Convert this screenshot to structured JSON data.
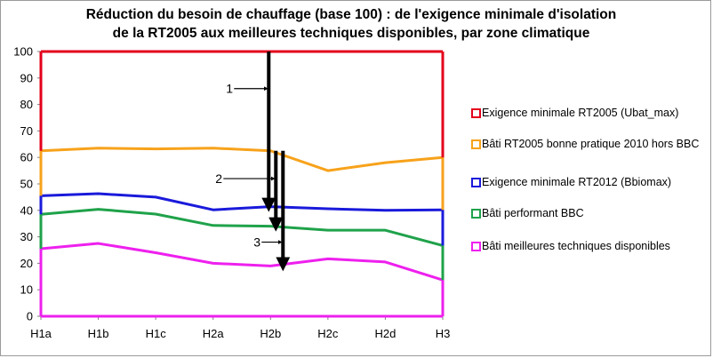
{
  "chart_data": {
    "type": "line",
    "title_lines": [
      "Réduction du besoin de chauffage (base 100) : de l'exigence minimale d'isolation",
      "de la RT2005 aux meilleures techniques disponibles, par zone climatique"
    ],
    "categories": [
      "H1a",
      "H1b",
      "H1c",
      "H2a",
      "H2b",
      "H2c",
      "H2d",
      "H3"
    ],
    "ylim": [
      0,
      100
    ],
    "yticks": [
      0,
      10,
      20,
      30,
      40,
      50,
      60,
      70,
      80,
      90,
      100
    ],
    "grid": false,
    "legend_position": "right",
    "series": [
      {
        "name": "Exigence minimale RT2005 (Ubat_max)",
        "color": "#e3001b",
        "values": [
          100,
          100,
          100,
          100,
          100,
          100,
          100,
          100
        ]
      },
      {
        "name": "Bâti RT2005 bonne pratique 2010 hors BBC",
        "color": "#f7a21b",
        "values": [
          62.5,
          63.5,
          63.2,
          63.5,
          62.5,
          55,
          58,
          60
        ]
      },
      {
        "name": "Exigence minimale RT2012 (Bbiomax)",
        "color": "#1a1adb",
        "values": [
          45.5,
          46.3,
          45,
          40.2,
          41.4,
          40.6,
          40,
          40.2
        ]
      },
      {
        "name": "Bâti performant BBC",
        "color": "#1fa24a",
        "values": [
          38.5,
          40.4,
          38.6,
          34.3,
          34,
          32.5,
          32.5,
          26.7
        ]
      },
      {
        "name": "Bâti meilleures techniques disponibles",
        "color": "#ee20ee",
        "values": [
          25.5,
          27.5,
          24,
          20,
          19,
          21.7,
          20.5,
          13.7
        ]
      }
    ],
    "annotations": [
      {
        "label": "1",
        "x_category": "H2b",
        "from_value": 100,
        "to_value": 41.4
      },
      {
        "label": "2",
        "x_category": "H2b",
        "from_value": 62.5,
        "to_value": 34
      },
      {
        "label": "3",
        "x_category": "H2b",
        "from_value": 62.5,
        "to_value": 19
      }
    ]
  }
}
